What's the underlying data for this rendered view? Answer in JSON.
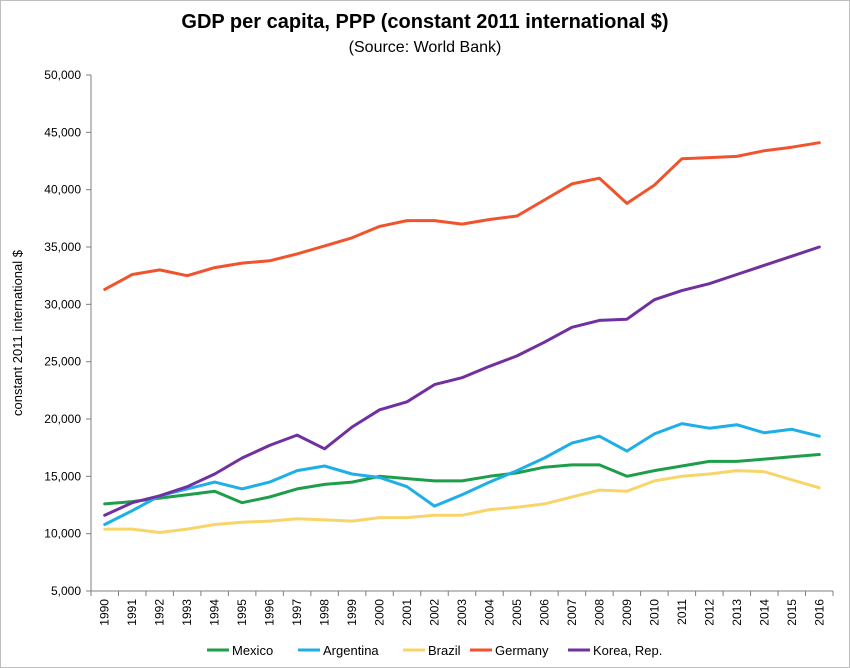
{
  "chart_data": {
    "type": "line",
    "title": "GDP per capita, PPP (constant 2011 international $)",
    "subtitle": "(Source: World Bank)",
    "xlabel": "",
    "ylabel": "constant 2011 international $",
    "ylim": [
      5000,
      50000
    ],
    "yticks": [
      5000,
      10000,
      15000,
      20000,
      25000,
      30000,
      35000,
      40000,
      45000,
      50000
    ],
    "ytick_labels": [
      "5,000",
      "10,000",
      "15,000",
      "20,000",
      "25,000",
      "30,000",
      "35,000",
      "40,000",
      "45,000",
      "50,000"
    ],
    "grid": false,
    "legend_position": "bottom",
    "x": [
      "1990",
      "1991",
      "1992",
      "1993",
      "1994",
      "1995",
      "1996",
      "1997",
      "1998",
      "1999",
      "2000",
      "2001",
      "2002",
      "2003",
      "2004",
      "2005",
      "2006",
      "2007",
      "2008",
      "2009",
      "2010",
      "2011",
      "2012",
      "2013",
      "2014",
      "2015",
      "2016"
    ],
    "series": [
      {
        "name": "Mexico",
        "color": "#1e9e4a",
        "values": [
          12600,
          12800,
          13100,
          13400,
          13700,
          12700,
          13200,
          13900,
          14300,
          14500,
          15000,
          14800,
          14600,
          14600,
          15000,
          15300,
          15800,
          16000,
          16000,
          15000,
          15500,
          15900,
          16300,
          16300,
          16500,
          16700,
          16900
        ]
      },
      {
        "name": "Argentina",
        "color": "#1eaee8",
        "values": [
          10800,
          12000,
          13300,
          13900,
          14500,
          13900,
          14500,
          15500,
          15900,
          15200,
          14900,
          14100,
          12400,
          13400,
          14500,
          15500,
          16600,
          17900,
          18500,
          17200,
          18700,
          19600,
          19200,
          19500,
          18800,
          19100,
          18500
        ]
      },
      {
        "name": "Brazil",
        "color": "#f8d56a",
        "values": [
          10400,
          10400,
          10100,
          10400,
          10800,
          11000,
          11100,
          11300,
          11200,
          11100,
          11400,
          11400,
          11600,
          11600,
          12100,
          12300,
          12600,
          13200,
          13800,
          13700,
          14600,
          15000,
          15200,
          15500,
          15400,
          14700,
          14000
        ]
      },
      {
        "name": "Germany",
        "color": "#f0532d",
        "values": [
          31300,
          32600,
          33000,
          32500,
          33200,
          33600,
          33800,
          34400,
          35100,
          35800,
          36800,
          37300,
          37300,
          37000,
          37400,
          37700,
          39100,
          40500,
          41000,
          38800,
          40400,
          42700,
          42800,
          42900,
          43400,
          43700,
          44100
        ]
      },
      {
        "name": "Korea, Rep.",
        "color": "#7030a0",
        "values": [
          11600,
          12700,
          13300,
          14100,
          15200,
          16600,
          17700,
          18600,
          17400,
          19300,
          20800,
          21500,
          23000,
          23600,
          24600,
          25500,
          26700,
          28000,
          28600,
          28700,
          30400,
          31200,
          31800,
          32600,
          33400,
          34200,
          35000
        ]
      }
    ]
  }
}
